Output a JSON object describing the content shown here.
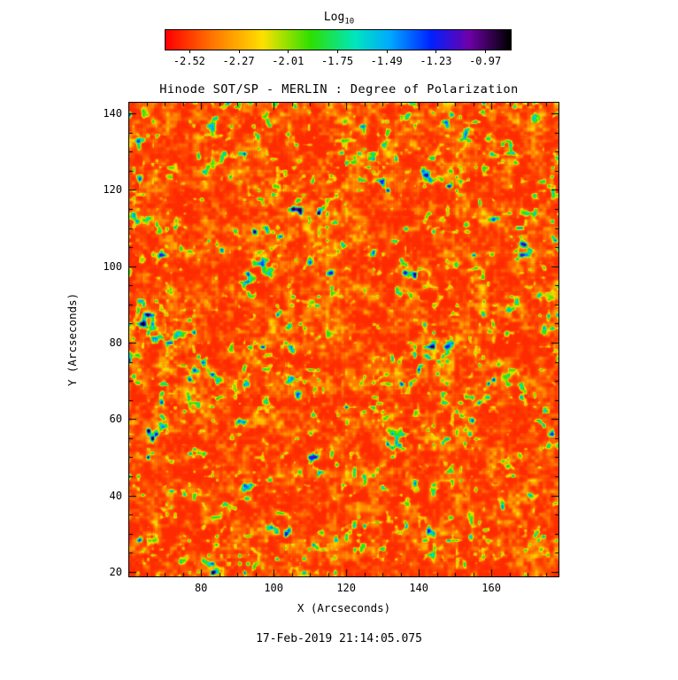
{
  "chart_data": {
    "type": "heatmap",
    "title": "Hinode SOT/SP - MERLIN : Degree of Polarization",
    "xlabel": "X (Arcseconds)",
    "ylabel": "Y (Arcseconds)",
    "timestamp": "17-Feb-2019 21:14:05.075",
    "xlim": [
      60.2,
      178.5
    ],
    "ylim": [
      18.8,
      142.8
    ],
    "x_ticks": [
      80,
      100,
      120,
      140,
      160
    ],
    "y_ticks": [
      20,
      40,
      60,
      80,
      100,
      120,
      140
    ],
    "minor_tick_step": 5,
    "grid": false,
    "legend_position": "none",
    "colorbar": {
      "label_main": "Log",
      "label_sub": "10",
      "tick_labels": [
        "-2.52",
        "-2.27",
        "-2.01",
        "-1.75",
        "-1.49",
        "-1.23",
        "-0.97"
      ],
      "tick_values": [
        -2.52,
        -2.27,
        -2.01,
        -1.75,
        -1.49,
        -1.23,
        -0.97
      ],
      "orientation": "horizontal",
      "stops": [
        {
          "pos": 0.0,
          "color": "#ff0000"
        },
        {
          "pos": 0.14,
          "color": "#ff7a00"
        },
        {
          "pos": 0.28,
          "color": "#ffe000"
        },
        {
          "pos": 0.42,
          "color": "#2ee000"
        },
        {
          "pos": 0.55,
          "color": "#00e6c0"
        },
        {
          "pos": 0.65,
          "color": "#00aaff"
        },
        {
          "pos": 0.77,
          "color": "#0022ff"
        },
        {
          "pos": 0.88,
          "color": "#7000aa"
        },
        {
          "pos": 1.0,
          "color": "#000000"
        }
      ]
    },
    "description": "Solar photospheric degree-of-polarization map: dominated by red/orange low-polarization granulation (log10 ~ -2.5 to -2.2), threaded by yellow-green network lanes and sparse small cyan/blue high-polarization patches.",
    "colors": {
      "background": "#ffffff",
      "text": "#000000",
      "frame": "#000000"
    }
  }
}
